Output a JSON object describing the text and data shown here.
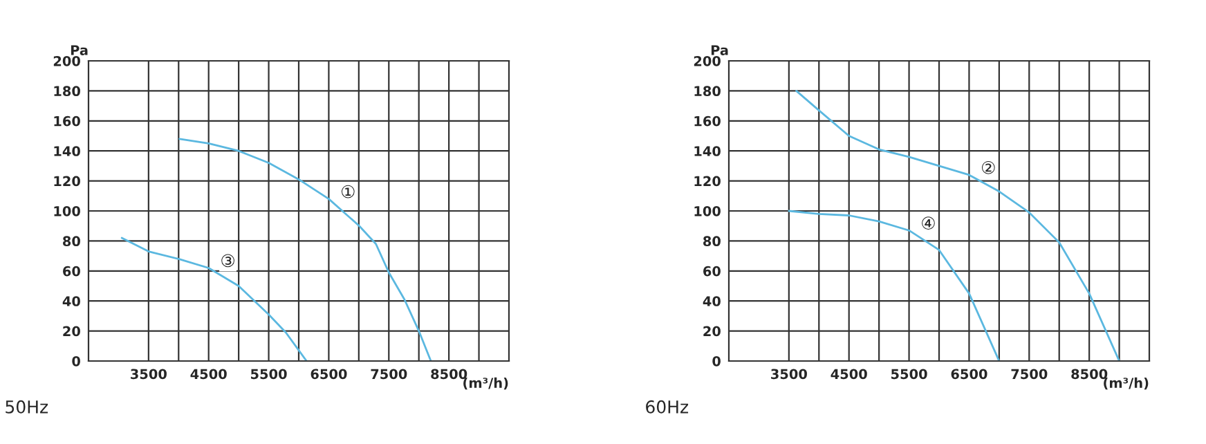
{
  "chart_data": [
    {
      "type": "line",
      "title": "50Hz",
      "ylabel": "Pa",
      "xlabel": "(m³/h)",
      "xlim": [
        2500,
        9500
      ],
      "ylim": [
        0,
        200
      ],
      "xticks": [
        3500,
        {
          "value": 4000,
          "label": null
        },
        4500,
        {
          "value": 5000,
          "label": null
        },
        5500,
        {
          "value": 6000,
          "label": null
        },
        6500,
        {
          "value": 7000,
          "label": null
        },
        7500,
        {
          "value": 8000,
          "label": null
        },
        8500,
        {
          "value": 9000,
          "label": null
        }
      ],
      "yticks": [
        0,
        20,
        40,
        60,
        80,
        100,
        120,
        140,
        160,
        180,
        200
      ],
      "grid": true,
      "marker": "none",
      "line_style": "solid",
      "series": [
        {
          "color": "#5bb8e0",
          "x": [
            4015,
            4500,
            5000,
            5500,
            6000,
            6500,
            7008,
            7285,
            7500,
            7760,
            8000,
            8200
          ],
          "values": [
            148,
            145,
            140,
            132,
            121,
            108,
            90,
            78,
            59,
            41,
            20,
            0
          ]
        },
        {
          "color": "#5bb8e0",
          "x": [
            3054,
            3500,
            4000,
            4500,
            5000,
            5500,
            5785,
            6130
          ],
          "values": [
            82,
            73,
            68,
            62,
            50,
            31,
            19,
            0
          ]
        }
      ],
      "annotations": [
        {
          "text": "①",
          "x": 6500,
          "y": 108
        },
        {
          "text": "③",
          "x": 4500,
          "y": 62
        }
      ]
    },
    {
      "type": "line",
      "title": "60Hz",
      "ylabel": "Pa",
      "xlabel": "(m³/h)",
      "xlim": [
        2500,
        9500
      ],
      "ylim": [
        0,
        200
      ],
      "xticks": [
        3500,
        {
          "value": 4000,
          "label": null
        },
        4500,
        {
          "value": 5000,
          "label": null
        },
        5500,
        {
          "value": 6000,
          "label": null
        },
        6500,
        {
          "value": 7000,
          "label": null
        },
        7500,
        {
          "value": 8000,
          "label": null
        },
        8500,
        {
          "value": 9000,
          "label": null
        }
      ],
      "yticks": [
        0,
        20,
        40,
        60,
        80,
        100,
        120,
        140,
        160,
        180,
        200
      ],
      "grid": true,
      "marker": "none",
      "line_style": "solid",
      "series": [
        {
          "color": "#5bb8e0",
          "x": [
            3623,
            4000,
            4500,
            5000,
            5500,
            6000,
            6500,
            7000,
            7500,
            8000,
            8500,
            9000
          ],
          "values": [
            180,
            167,
            150,
            141,
            136,
            130,
            124,
            113,
            99,
            79,
            45,
            0
          ]
        },
        {
          "color": "#5bb8e0",
          "x": [
            3500,
            4000,
            4500,
            5000,
            5500,
            6000,
            6500,
            7000
          ],
          "values": [
            100,
            98,
            97,
            93,
            87,
            74,
            45,
            0
          ]
        }
      ],
      "annotations": [
        {
          "text": "②",
          "x": 6500,
          "y": 124
        },
        {
          "text": "④",
          "x": 5500,
          "y": 87
        }
      ]
    }
  ]
}
